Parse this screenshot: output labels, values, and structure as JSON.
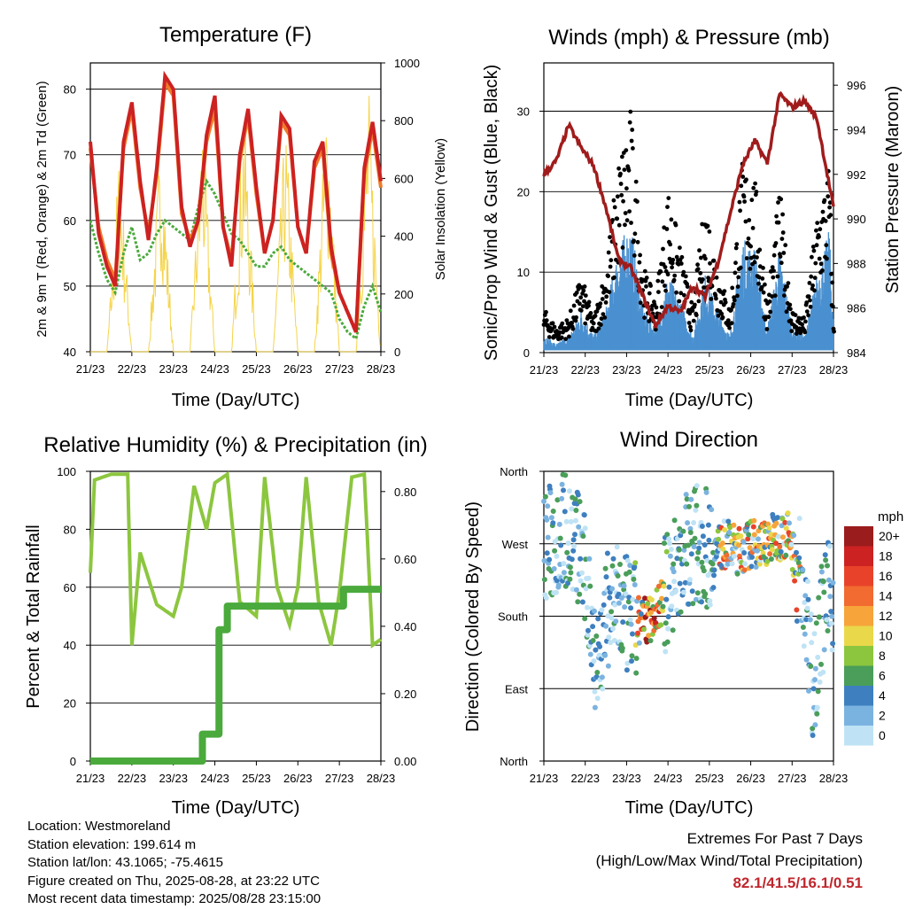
{
  "charts": {
    "temperature": {
      "title": "Temperature (F)",
      "ylabel_left": "2m & 9m T (Red, Orange) & 2m Td (Green)",
      "ylabel_right": "Solar Insolation (Yellow)",
      "xlabel": "Time (Day/UTC)"
    },
    "winds": {
      "title": "Winds (mph) & Pressure (mb)",
      "ylabel_left": "Sonic/Prop Wind & Gust (Blue, Black)",
      "ylabel_right": "Station Pressure (Maroon)",
      "xlabel": "Time (Day/UTC)"
    },
    "humidity": {
      "title": "Relative Humidity (%) & Precipitation (in)",
      "ylabel_left": "Percent & Total Rainfall",
      "xlabel": "Time (Day/UTC)"
    },
    "direction": {
      "title": "Wind Direction",
      "ylabel_left": "Direction (Colored By Speed)",
      "xlabel": "Time (Day/UTC)",
      "legend_title": "mph"
    }
  },
  "chart_data": [
    {
      "type": "line",
      "title": "Temperature (F)",
      "xlabel": "Time (Day/UTC)",
      "ylabel": "2m & 9m T (Red, Orange) & 2m Td (Green)",
      "y2label": "Solar Insolation (Yellow)",
      "x_ticks": [
        "21/23",
        "22/23",
        "23/23",
        "24/23",
        "25/23",
        "26/23",
        "27/23",
        "28/23"
      ],
      "ylim": [
        40,
        84
      ],
      "yticks": [
        40,
        50,
        60,
        70,
        80
      ],
      "y2lim": [
        0,
        1000
      ],
      "y2ticks": [
        0,
        200,
        400,
        600,
        800,
        1000
      ],
      "grid": "horizontal",
      "series": [
        {
          "color": "#cc2222",
          "x": [
            0,
            0.2,
            0.4,
            0.6,
            0.8,
            1.0,
            1.2,
            1.4,
            1.6,
            1.8,
            2.0,
            2.2,
            2.4,
            2.6,
            2.8,
            3.0,
            3.2,
            3.4,
            3.6,
            3.8,
            4.0,
            4.2,
            4.4,
            4.6,
            4.8,
            5.0,
            5.2,
            5.4,
            5.6,
            5.8,
            6.0,
            6.2,
            6.4,
            6.6,
            6.8,
            7.0
          ],
          "values": [
            72,
            58,
            53,
            50,
            72,
            78,
            66,
            57,
            68,
            82,
            80,
            62,
            56,
            60,
            73,
            79,
            59,
            53,
            70,
            77,
            65,
            55,
            60,
            76,
            74,
            59,
            55,
            69,
            72,
            56,
            49,
            46,
            43,
            68,
            75,
            66
          ]
        },
        {
          "color": "#f07a2a",
          "x": [
            0,
            0.2,
            0.4,
            0.6,
            0.8,
            1.0,
            1.2,
            1.4,
            1.6,
            1.8,
            2.0,
            2.2,
            2.4,
            2.6,
            2.8,
            3.0,
            3.2,
            3.4,
            3.6,
            3.8,
            4.0,
            4.2,
            4.4,
            4.6,
            4.8,
            5.0,
            5.2,
            5.4,
            5.6,
            5.8,
            6.0,
            6.2,
            6.4,
            6.6,
            6.8,
            7.0
          ],
          "values": [
            71,
            59,
            54,
            51,
            71,
            77,
            65,
            58,
            67,
            81,
            79,
            61,
            57,
            60,
            72,
            77,
            59,
            54,
            69,
            76,
            64,
            55,
            60,
            75,
            73,
            59,
            55,
            68,
            71,
            55,
            49,
            46,
            43,
            67,
            74,
            65
          ]
        },
        {
          "color": "#4aaa3c",
          "x": [
            0,
            0.2,
            0.4,
            0.6,
            0.8,
            1.0,
            1.2,
            1.4,
            1.6,
            1.8,
            2.0,
            2.2,
            2.4,
            2.6,
            2.8,
            3.0,
            3.2,
            3.4,
            3.6,
            3.8,
            4.0,
            4.2,
            4.4,
            4.6,
            4.8,
            5.0,
            5.2,
            5.4,
            5.6,
            5.8,
            6.0,
            6.2,
            6.4,
            6.6,
            6.8,
            7.0
          ],
          "values": [
            60,
            55,
            51,
            49,
            55,
            59,
            54,
            55,
            58,
            60,
            59,
            58,
            57,
            62,
            66,
            64,
            61,
            58,
            57,
            55,
            53,
            53,
            55,
            56,
            54,
            53,
            52,
            51,
            50,
            49,
            45,
            43,
            42,
            47,
            50,
            46
          ]
        },
        {
          "color": "#f5d44a",
          "x": [
            0.4,
            0.7,
            1.0,
            1.4,
            1.7,
            2.0,
            2.4,
            2.7,
            3.0,
            3.4,
            3.7,
            4.0,
            4.4,
            4.7,
            5.0,
            5.4,
            5.7,
            6.0,
            6.4,
            6.7,
            7.0
          ],
          "values": [
            0,
            720,
            0,
            0,
            780,
            0,
            0,
            850,
            0,
            0,
            900,
            0,
            0,
            820,
            0,
            0,
            950,
            0,
            0,
            960,
            0
          ]
        }
      ]
    },
    {
      "type": "scatter",
      "title": "Winds (mph) & Pressure (mb)",
      "xlabel": "Time (Day/UTC)",
      "ylabel": "Sonic/Prop Wind & Gust (Blue, Black)",
      "y2label": "Station Pressure (Maroon)",
      "x_ticks": [
        "21/23",
        "22/23",
        "23/23",
        "24/23",
        "25/23",
        "26/23",
        "27/23",
        "28/23"
      ],
      "ylim": [
        0,
        36
      ],
      "yticks": [
        0,
        10,
        20,
        30
      ],
      "y2lim": [
        984,
        997
      ],
      "y2ticks": [
        984,
        986,
        988,
        990,
        992,
        994,
        996
      ],
      "grid": "horizontal",
      "series": [
        {
          "color": "#000000",
          "x": [
            0,
            0.3,
            0.6,
            0.9,
            1.2,
            1.5,
            1.8,
            2.1,
            2.4,
            2.7,
            3.0,
            3.3,
            3.6,
            3.9,
            4.2,
            4.5,
            4.8,
            5.1,
            5.4,
            5.7,
            6.0,
            6.3,
            6.6,
            6.9,
            7.0
          ],
          "values": [
            5,
            3,
            4,
            9,
            4,
            10,
            22,
            28,
            10,
            6,
            19,
            12,
            5,
            18,
            10,
            5,
            22,
            20,
            6,
            19,
            5,
            4,
            16,
            22,
            4
          ]
        },
        {
          "color": "#4a90d0",
          "x": [
            0,
            0.3,
            0.6,
            0.9,
            1.2,
            1.5,
            1.8,
            2.1,
            2.4,
            2.7,
            3.0,
            3.3,
            3.6,
            3.9,
            4.2,
            4.5,
            4.8,
            5.1,
            5.4,
            5.7,
            6.0,
            6.3,
            6.6,
            6.9,
            7.0
          ],
          "values": [
            2,
            1,
            2,
            5,
            2,
            5,
            12,
            15,
            5,
            3,
            9,
            6,
            2,
            9,
            5,
            2,
            13,
            12,
            3,
            12,
            3,
            2,
            9,
            14,
            3
          ]
        },
        {
          "color": "#a01c1c",
          "x": [
            0,
            0.3,
            0.6,
            0.9,
            1.2,
            1.5,
            1.8,
            2.1,
            2.4,
            2.7,
            3.0,
            3.3,
            3.6,
            3.9,
            4.2,
            4.5,
            4.8,
            5.1,
            5.4,
            5.7,
            6.0,
            6.3,
            6.6,
            6.9,
            7.0
          ],
          "values": [
            992,
            992.6,
            994.2,
            993.2,
            992.4,
            990.5,
            988.2,
            987.8,
            986.5,
            985.2,
            986.1,
            985.8,
            987,
            986.5,
            988,
            990.2,
            992.4,
            993.5,
            992.5,
            995.6,
            995,
            995.3,
            994.5,
            991.5,
            990.5
          ]
        }
      ]
    },
    {
      "type": "line",
      "title": "Relative Humidity (%) & Precipitation (in)",
      "xlabel": "Time (Day/UTC)",
      "ylabel": "Percent & Total Rainfall",
      "x_ticks": [
        "21/23",
        "22/23",
        "23/23",
        "24/23",
        "25/23",
        "26/23",
        "27/23",
        "28/23"
      ],
      "ylim": [
        0,
        100
      ],
      "yticks": [
        0,
        20,
        40,
        60,
        80,
        100
      ],
      "y2lim": [
        0,
        0.86
      ],
      "y2ticks": [
        "0.00",
        "0.20",
        "0.40",
        "0.60",
        "0.80"
      ],
      "grid": "horizontal",
      "series": [
        {
          "color": "#8cc63f",
          "x": [
            0,
            0.1,
            0.5,
            0.9,
            1.0,
            1.2,
            1.6,
            2.0,
            2.2,
            2.5,
            2.8,
            3.0,
            3.3,
            3.6,
            4.0,
            4.2,
            4.5,
            4.8,
            5.0,
            5.2,
            5.5,
            5.8,
            6.0,
            6.3,
            6.6,
            6.8,
            7.0
          ],
          "values": [
            65,
            97,
            99,
            99,
            40,
            72,
            54,
            50,
            60,
            95,
            80,
            96,
            99,
            55,
            50,
            98,
            60,
            47,
            60,
            98,
            55,
            40,
            58,
            98,
            99,
            40,
            42
          ]
        },
        {
          "color": "#4aaa3c",
          "x": [
            0,
            2.6,
            2.7,
            3.0,
            3.1,
            3.3,
            6.0,
            6.1,
            7.0
          ],
          "values": [
            0,
            0,
            0.08,
            0.08,
            0.39,
            0.46,
            0.46,
            0.51,
            0.51
          ]
        }
      ]
    },
    {
      "type": "scatter",
      "title": "Wind Direction",
      "xlabel": "Time (Day/UTC)",
      "ylabel": "Direction (Colored By Speed)",
      "x_ticks": [
        "21/23",
        "22/23",
        "23/23",
        "24/23",
        "25/23",
        "26/23",
        "27/23",
        "28/23"
      ],
      "y_categories": [
        "North",
        "East",
        "South",
        "West",
        "North"
      ],
      "legend": {
        "title": "mph",
        "position": "right",
        "levels": [
          "20+",
          "18",
          "16",
          "14",
          "12",
          "10",
          "8",
          "6",
          "4",
          "2",
          "0"
        ],
        "colors": [
          "#9b1c1c",
          "#cc2222",
          "#e8432a",
          "#f26b30",
          "#f7a43a",
          "#e9d84a",
          "#8cc63f",
          "#4a9e5a",
          "#3e7fbf",
          "#7bb3e0",
          "#bfe3f5"
        ]
      },
      "grid": "horizontal",
      "series": [
        {
          "color": "#7bb3e0",
          "x": [
            0.2,
            0.5,
            0.9,
            1.3,
            1.6,
            2.0,
            2.3,
            2.6,
            2.9,
            3.2,
            3.5,
            3.8,
            4.1,
            4.4,
            4.7,
            5.0,
            5.3,
            5.6,
            5.9,
            6.2,
            6.5,
            6.8,
            7.0
          ],
          "values": [
            270,
            290,
            260,
            120,
            200,
            180,
            170,
            180,
            200,
            240,
            270,
            270,
            260,
            270,
            260,
            270,
            270,
            280,
            280,
            230,
            100,
            200,
            190
          ]
        }
      ]
    }
  ],
  "info": {
    "location": "Location: Westmoreland",
    "elevation": "Station elevation: 199.614 m",
    "latlon": "Station lat/lon: 43.1065; -75.4615",
    "created": "Figure created on Thu, 2025-08-28, at 23:22 UTC",
    "timestamp": "Most recent data timestamp: 2025/08/28 23:15:00"
  },
  "extremes": {
    "title": "Extremes For Past 7 Days",
    "subtitle": "(High/Low/Max Wind/Total Precipitation)",
    "values": "82.1/41.5/16.1/0.51"
  }
}
